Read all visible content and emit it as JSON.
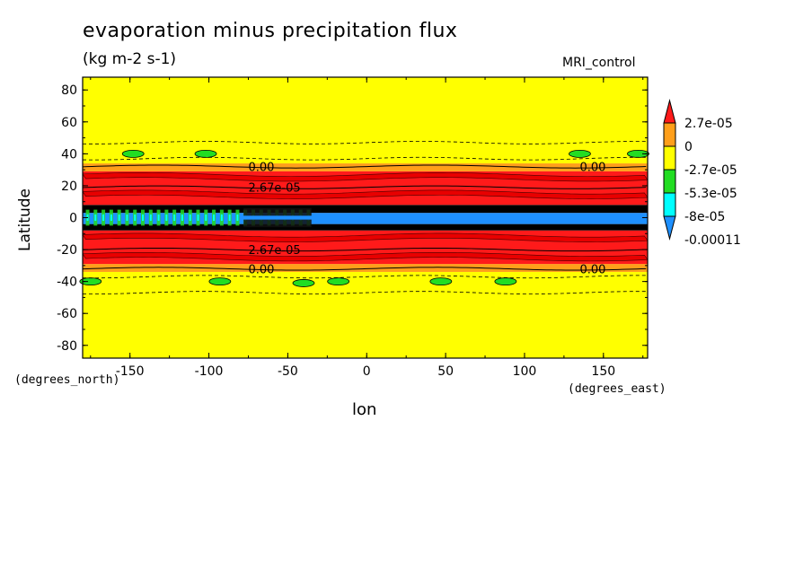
{
  "title": "evaporation minus precipitation flux",
  "units": "(kg m-2 s-1)",
  "dataset": "MRI_control",
  "colors": {
    "red": "#ff1a1a",
    "orange": "#ff9f1a",
    "yellow": "#ffff00",
    "green": "#22dd22",
    "cyan": "#00ffff",
    "blue": "#1e90ff",
    "black": "#000000"
  },
  "chart_data": {
    "type": "heatmap",
    "xlabel": "lon",
    "ylabel": "Latitude",
    "x_unit": "(degrees_east)",
    "y_unit": "(degrees_north)",
    "xlim": [
      -180,
      178
    ],
    "ylim": [
      -88,
      88
    ],
    "xticks": [
      -150,
      -100,
      -50,
      0,
      50,
      100,
      150
    ],
    "yticks": [
      80,
      60,
      40,
      20,
      0,
      -20,
      -40,
      -60,
      -80
    ],
    "colorbar": {
      "labels": [
        "2.7e-05",
        "0",
        "-2.7e-05",
        "-5.3e-05",
        "-8e-05",
        "-0.00011"
      ],
      "colors": [
        "#ff1a1a",
        "#ff9f1a",
        "#ffff00",
        "#22dd22",
        "#00ffff",
        "#1e90ff"
      ]
    },
    "bands": [
      {
        "lat": [
          -88,
          -34
        ],
        "color": "yellow"
      },
      {
        "lat": [
          -34,
          -29
        ],
        "color": "orange"
      },
      {
        "lat": [
          -29,
          -8
        ],
        "color": "red"
      },
      {
        "lat": [
          -8,
          -4
        ],
        "color": "black"
      },
      {
        "lat": [
          -4,
          3
        ],
        "color": "blue"
      },
      {
        "lat": [
          3,
          8
        ],
        "color": "black"
      },
      {
        "lat": [
          8,
          29
        ],
        "color": "red"
      },
      {
        "lat": [
          29,
          34
        ],
        "color": "orange"
      },
      {
        "lat": [
          34,
          88
        ],
        "color": "yellow"
      }
    ],
    "contours": [
      {
        "lat": 32,
        "label": "0.00"
      },
      {
        "lat": 19,
        "label": "2.67e-05"
      },
      {
        "lat": -20,
        "label": "2.67e-05"
      },
      {
        "lat": -32,
        "label": "0.00"
      }
    ],
    "patches": [
      {
        "lon": -148,
        "lat": 40,
        "color": "green"
      },
      {
        "lon": -102,
        "lat": 40,
        "color": "green"
      },
      {
        "lon": 135,
        "lat": 40,
        "color": "green"
      },
      {
        "lon": 172,
        "lat": 40,
        "color": "green"
      },
      {
        "lon": -175,
        "lat": -40,
        "color": "green"
      },
      {
        "lon": -93,
        "lat": -40,
        "color": "green"
      },
      {
        "lon": -40,
        "lat": -41,
        "color": "green"
      },
      {
        "lon": -18,
        "lat": -40,
        "color": "green"
      },
      {
        "lon": 47,
        "lat": -40,
        "color": "green"
      },
      {
        "lon": 88,
        "lat": -40,
        "color": "green"
      }
    ]
  }
}
